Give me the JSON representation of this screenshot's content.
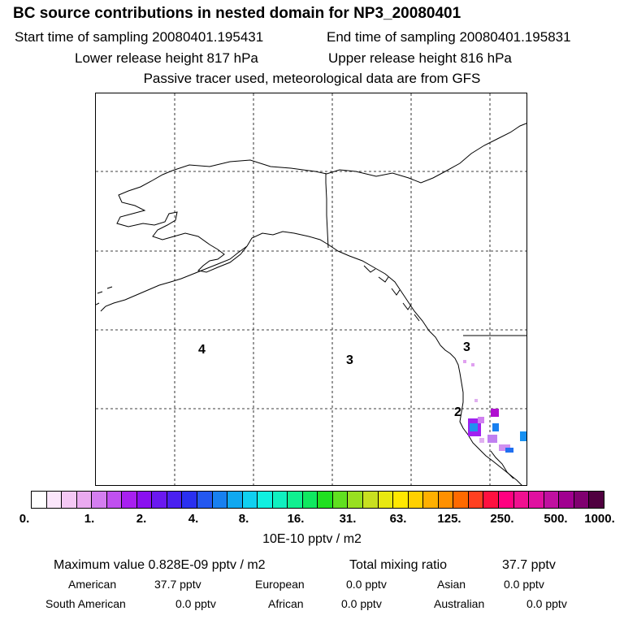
{
  "header": {
    "title": "BC  source contributions in nested domain for NP3_20080401",
    "start_time": "Start time of sampling 20080401.195431",
    "end_time": "End time of sampling 20080401.195831",
    "lower_height": "Lower release height  817 hPa",
    "upper_height": "Upper release height  816 hPa",
    "tracer_note": "Passive tracer used, meteorological data are from GFS"
  },
  "map": {
    "regions": [
      "4",
      "3",
      "3",
      "2"
    ],
    "colors": {
      "coastline": "#000000",
      "grid": "#000000"
    }
  },
  "colorbar": {
    "ticks": [
      "0.",
      "1.",
      "2.",
      "4.",
      "8.",
      "16.",
      "31.",
      "63.",
      "125.",
      "250.",
      "500.",
      "1000."
    ],
    "colors": [
      "#ffffff",
      "#fbe6fb",
      "#f4c8f4",
      "#eaaaf0",
      "#d47ef0",
      "#c050f0",
      "#a820f0",
      "#8a10f0",
      "#6a18f0",
      "#4a20f0",
      "#2a30f0",
      "#2458f0",
      "#1880f0",
      "#10a8f0",
      "#10d0f0",
      "#10f0e0",
      "#10f0c0",
      "#10f090",
      "#10e860",
      "#20e020",
      "#60e020",
      "#98e020",
      "#c8e020",
      "#e8e810",
      "#ffe800",
      "#ffd000",
      "#ffb000",
      "#ff9000",
      "#ff6a00",
      "#ff4020",
      "#ff1040",
      "#ff0080",
      "#f01090",
      "#e010a0",
      "#c010a0",
      "#a00090",
      "#800070",
      "#500040"
    ],
    "units": "10E-10 pptv / m2"
  },
  "stats": {
    "max_value": "Maximum value  0.828E-09 pptv / m2",
    "total_label": "Total mixing ratio",
    "total_value": "37.7 pptv",
    "american_label": "American",
    "american_value": "37.7 pptv",
    "european_label": "European",
    "european_value": "0.0 pptv",
    "asian_label": "Asian",
    "asian_value": "0.0 pptv",
    "south_american_label": "South American",
    "south_american_value": "0.0 pptv",
    "african_label": "African",
    "african_value": "0.0 pptv",
    "australian_label": "Australian",
    "australian_value": "0.0 pptv"
  }
}
